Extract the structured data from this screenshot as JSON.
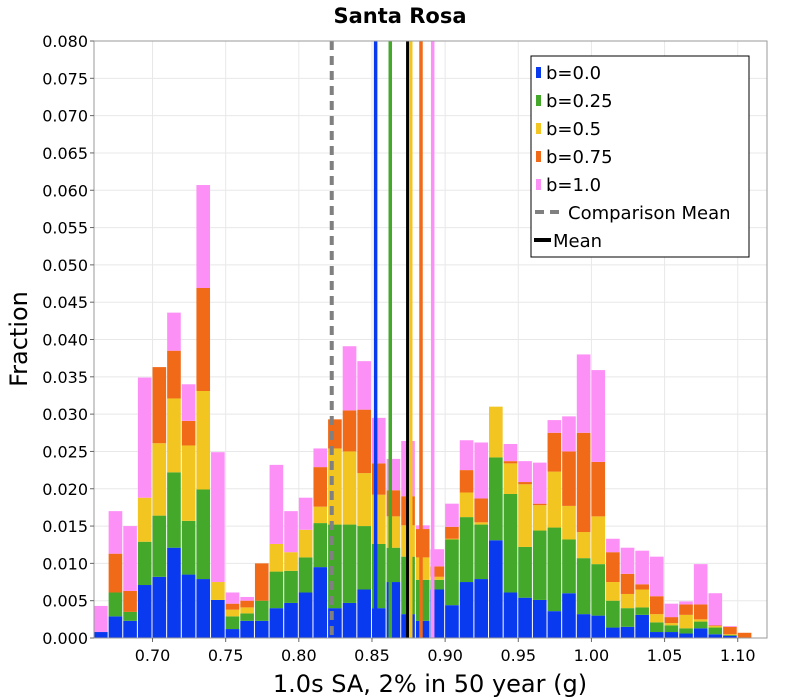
{
  "chart_data": {
    "type": "bar",
    "stacked": true,
    "title": "Santa Rosa",
    "xlabel": "1.0s SA, 2% in 50 year (g)",
    "ylabel": "Fraction",
    "xlim": [
      0.66,
      1.12
    ],
    "ylim": [
      0,
      0.08
    ],
    "bin_width": 0.01,
    "grid": true,
    "legend_position": "top-right",
    "xticks": [
      "0.70",
      "0.75",
      "0.80",
      "0.85",
      "0.90",
      "0.95",
      "1.00",
      "1.05",
      "1.10"
    ],
    "yticks": [
      "0.000",
      "0.005",
      "0.010",
      "0.015",
      "0.020",
      "0.025",
      "0.030",
      "0.035",
      "0.040",
      "0.045",
      "0.050",
      "0.055",
      "0.060",
      "0.065",
      "0.070",
      "0.075",
      "0.080"
    ],
    "x": [
      0.665,
      0.675,
      0.685,
      0.695,
      0.705,
      0.715,
      0.725,
      0.735,
      0.745,
      0.755,
      0.765,
      0.775,
      0.785,
      0.795,
      0.805,
      0.815,
      0.825,
      0.835,
      0.845,
      0.855,
      0.865,
      0.875,
      0.885,
      0.895,
      0.905,
      0.915,
      0.925,
      0.935,
      0.945,
      0.955,
      0.965,
      0.975,
      0.985,
      0.995,
      1.005,
      1.015,
      1.025,
      1.035,
      1.045,
      1.055,
      1.065,
      1.075,
      1.085,
      1.095,
      1.105,
      1.115
    ],
    "series": [
      {
        "name": "b=0.0",
        "color": "#0a3af0",
        "values": [
          0.0008,
          0.0029,
          0.0023,
          0.0071,
          0.0082,
          0.0121,
          0.0085,
          0.0079,
          0.0051,
          0.0012,
          0.0023,
          0.0023,
          0.004,
          0.0047,
          0.0061,
          0.0095,
          0.004,
          0.0047,
          0.0065,
          0.004,
          0.0075,
          0.0032,
          0.0023,
          0.0065,
          0.0044,
          0.0075,
          0.0079,
          0.0131,
          0.0061,
          0.0054,
          0.0051,
          0.0036,
          0.006,
          0.0032,
          0.003,
          0.0014,
          0.0015,
          0.0031,
          0.0008,
          0.0008,
          0.0006,
          0.0013,
          0.0005,
          0.0003,
          0.0,
          0.0
        ]
      },
      {
        "name": "b=0.25",
        "color": "#44a82a",
        "values": [
          0.0,
          0.0032,
          0.0012,
          0.0058,
          0.0082,
          0.0101,
          0.0072,
          0.012,
          0.0,
          0.0017,
          0.001,
          0.0027,
          0.0049,
          0.0043,
          0.0047,
          0.0059,
          0.0112,
          0.0105,
          0.0085,
          0.0086,
          0.0046,
          0.0077,
          0.0055,
          0.0013,
          0.0088,
          0.0087,
          0.0073,
          0.0111,
          0.0132,
          0.0068,
          0.0093,
          0.0112,
          0.0072,
          0.0075,
          0.0069,
          0.0036,
          0.0025,
          0.001,
          0.0013,
          0.0009,
          0.0007,
          0.0009,
          0.0009,
          0.0001,
          0.0,
          0.0
        ]
      },
      {
        "name": "b=0.5",
        "color": "#f2c521",
        "values": [
          0.0,
          0.0,
          0.0,
          0.0059,
          0.0097,
          0.0099,
          0.0101,
          0.0132,
          0.0024,
          0.0009,
          0.0008,
          0.0,
          0.0037,
          0.0025,
          0.0037,
          0.0022,
          0.0102,
          0.0098,
          0.0071,
          0.0066,
          0.0042,
          0.0042,
          0.003,
          0.0004,
          0.0001,
          0.0033,
          0.0003,
          0.0068,
          0.0041,
          0.0084,
          0.0034,
          0.0075,
          0.0045,
          0.0035,
          0.0064,
          0.0025,
          0.0019,
          0.0024,
          0.0011,
          0.0003,
          0.0018,
          0.0003,
          0.0002,
          0.0001,
          0.0,
          0.0
        ]
      },
      {
        "name": "b=0.75",
        "color": "#f06a17",
        "values": [
          0.0,
          0.0052,
          0.0028,
          0.0,
          0.0102,
          0.0064,
          0.0033,
          0.0138,
          0.0,
          0.0008,
          0.0009,
          0.005,
          0.0,
          0.0,
          0.0,
          0.0053,
          0.0039,
          0.0055,
          0.0085,
          0.0042,
          0.0035,
          0.0039,
          0.0038,
          0.0014,
          0.0016,
          0.003,
          0.0032,
          0.0,
          0.0003,
          0.0003,
          0.0002,
          0.0052,
          0.0073,
          0.0133,
          0.0073,
          0.004,
          0.0027,
          0.0007,
          0.0024,
          0.0008,
          0.0014,
          0.002,
          0.0001,
          0.001,
          0.0007,
          0.0
        ]
      },
      {
        "name": "b=1.0",
        "color": "#fd90f7",
        "values": [
          0.0035,
          0.0057,
          0.0087,
          0.0161,
          0.0,
          0.0051,
          0.0049,
          0.0138,
          0.0174,
          0.0015,
          0.0005,
          0.0,
          0.0106,
          0.0055,
          0.0043,
          0.0025,
          0.0,
          0.0086,
          0.0065,
          0.0061,
          0.0042,
          0.0074,
          0.0005,
          0.0023,
          0.0031,
          0.004,
          0.0075,
          0.0,
          0.0023,
          0.0028,
          0.0055,
          0.0017,
          0.0047,
          0.0105,
          0.0123,
          0.0018,
          0.0035,
          0.0045,
          0.0053,
          0.0018,
          0.0004,
          0.0054,
          0.0043,
          0.0001,
          0.0,
          0.0
        ]
      }
    ],
    "vertical_lines": [
      {
        "label": "Comparison Mean",
        "x": 0.8225,
        "color": "#808080",
        "style": "dashed"
      },
      {
        "label": "b=0.0",
        "x": 0.8525,
        "color": "#0a3af0",
        "style": "solid"
      },
      {
        "label": "b=0.25",
        "x": 0.8625,
        "color": "#44a82a",
        "style": "solid"
      },
      {
        "label": "Mean",
        "x": 0.8745,
        "color": "#000000",
        "style": "solid"
      },
      {
        "label": "b=0.5",
        "x": 0.8765,
        "color": "#f2c521",
        "style": "solid"
      },
      {
        "label": "b=0.75",
        "x": 0.8835,
        "color": "#f06a17",
        "style": "solid"
      },
      {
        "label": "b=1.0",
        "x": 0.8915,
        "color": "#fd90f7",
        "style": "solid"
      }
    ],
    "legend": [
      {
        "label": "b=0.0",
        "color": "#0a3af0",
        "kind": "box"
      },
      {
        "label": "b=0.25",
        "color": "#44a82a",
        "kind": "box"
      },
      {
        "label": "b=0.5",
        "color": "#f2c521",
        "kind": "box"
      },
      {
        "label": "b=0.75",
        "color": "#f06a17",
        "kind": "box"
      },
      {
        "label": "b=1.0",
        "color": "#fd90f7",
        "kind": "box"
      },
      {
        "label": "Comparison Mean",
        "color": "#808080",
        "kind": "dashed"
      },
      {
        "label": "Mean",
        "color": "#000000",
        "kind": "line"
      }
    ]
  }
}
